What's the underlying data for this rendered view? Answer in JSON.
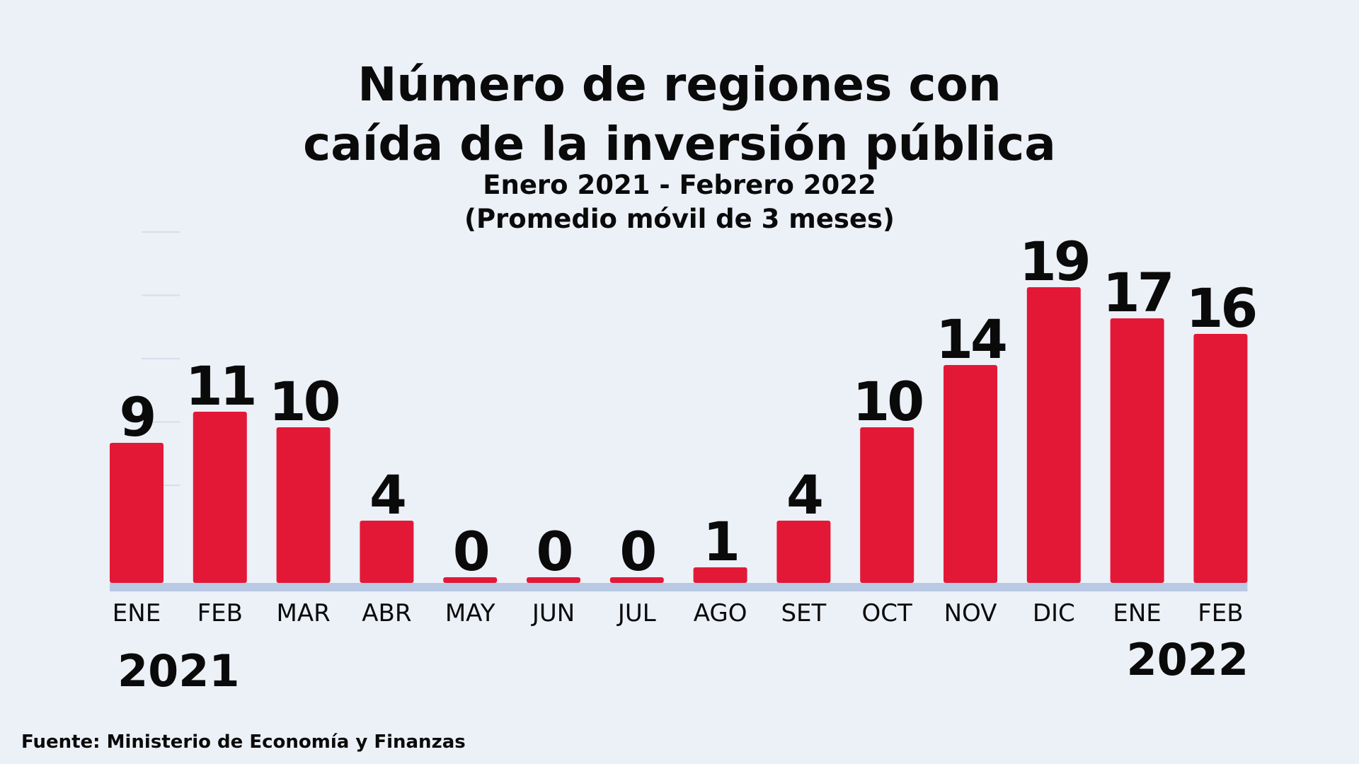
{
  "chart_data": {
    "type": "bar",
    "title_lines": [
      "Número de regiones con",
      "caída de la inversión pública"
    ],
    "subtitle_lines": [
      "Enero 2021 - Febrero 2022",
      "(Promedio móvil de 3 meses)"
    ],
    "categories": [
      "ENE",
      "FEB",
      "MAR",
      "ABR",
      "MAY",
      "JUN",
      "JUL",
      "AGO",
      "SET",
      "OCT",
      "NOV",
      "DIC",
      "ENE",
      "FEB"
    ],
    "values": [
      9,
      11,
      10,
      4,
      0,
      0,
      0,
      1,
      4,
      10,
      14,
      19,
      17,
      16
    ],
    "year_labels": {
      "start": "2021",
      "end": "2022"
    },
    "ylim": [
      0,
      19
    ],
    "grid": false,
    "colors": {
      "bar": "#e31837",
      "baseline": "#b9c9e4",
      "background": "#ecf0f7",
      "text": "#0a0a0a"
    }
  },
  "source": "Fuente: Ministerio de Economía y Finanzas"
}
